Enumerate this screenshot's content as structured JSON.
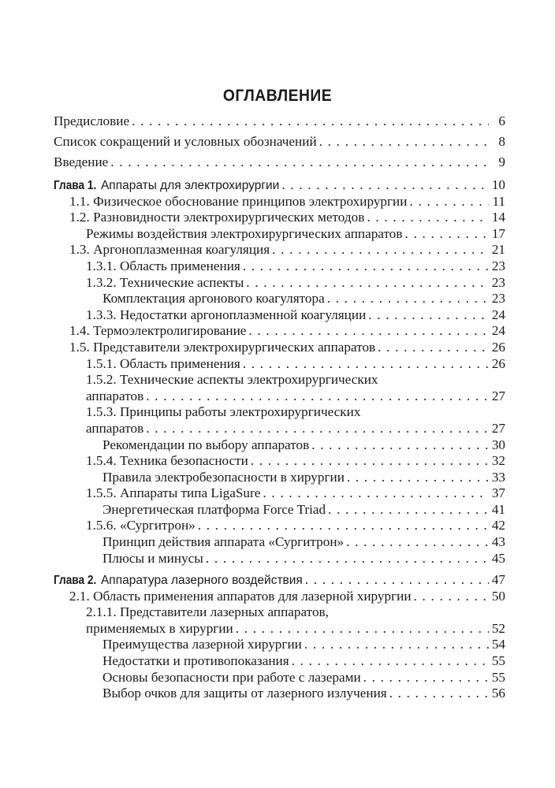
{
  "title": "ОГЛАВЛЕНИЕ",
  "front": [
    {
      "text": "Предисловие",
      "page": "6"
    },
    {
      "text": "Список сокращений и условных обозначений",
      "page": "8"
    },
    {
      "text": "Введение",
      "page": "9"
    }
  ],
  "chapter1": {
    "label": "Глава 1.",
    "text": "Аппараты для электрохирургии",
    "page": "10",
    "entries": [
      {
        "text": "1.1. Физическое обоснование принципов электрохирургии",
        "page": "11"
      },
      {
        "text": "1.2. Разновидности электрохирургических методов",
        "page": "14"
      },
      {
        "text": "Режимы воздействия электрохирургических аппаратов",
        "page": "17"
      },
      {
        "text": "1.3. Аргоноплазменная коагуляция",
        "page": "21"
      },
      {
        "text": "1.3.1. Область применения",
        "page": "23"
      },
      {
        "text": "1.3.2. Технические аспекты",
        "page": "23"
      },
      {
        "text": "Комплектация аргонового коагулятора",
        "page": "23"
      },
      {
        "text": "1.3.3. Недостатки аргоноплазменной коагуляции",
        "page": "24"
      },
      {
        "text": "1.4. Термоэлектролигирование",
        "page": "24"
      },
      {
        "text": "1.5. Представители электрохирургических аппаратов",
        "page": "26"
      },
      {
        "text": "1.5.1. Область применения",
        "page": "26"
      },
      {
        "text": "1.5.2. Технические аспекты электрохирургических",
        "text2": "аппаратов",
        "page": "27"
      },
      {
        "text": "1.5.3. Принципы работы электрохирургических",
        "text2": "аппаратов",
        "page": "27"
      },
      {
        "text": "Рекомендации по выбору аппаратов",
        "page": "30"
      },
      {
        "text": "1.5.4. Техника безопасности",
        "page": "32"
      },
      {
        "text": "Правила электробезопасности в хирургии",
        "page": "33"
      },
      {
        "text": "1.5.5. Аппараты типа LigaSure",
        "page": "37"
      },
      {
        "text": "Энергетическая платформа Force Triad",
        "page": "41"
      },
      {
        "text": "1.5.6. «Сургитрон»",
        "page": "42"
      },
      {
        "text": "Принцип действия аппарата «Сургитрон»",
        "page": "43"
      },
      {
        "text": "Плюсы и минусы",
        "page": "45"
      }
    ]
  },
  "chapter2": {
    "label": "Глава 2.",
    "text": "Аппаратура лазерного воздействия",
    "page": "47",
    "entries": [
      {
        "text": "2.1. Область применения аппаратов для лазерной хирургии",
        "page": "50"
      },
      {
        "text": "2.1.1. Представители лазерных аппаратов,",
        "text2": "применяемых в хирургии",
        "page": "52"
      },
      {
        "text": "Преимущества лазерной хирургии",
        "page": "54"
      },
      {
        "text": "Недостатки и противопоказания",
        "page": "55"
      },
      {
        "text": "Основы безопасности при работе с лазерами",
        "page": "55"
      },
      {
        "text": "Выбор очков для защиты от лазерного излучения",
        "page": "56"
      }
    ]
  }
}
